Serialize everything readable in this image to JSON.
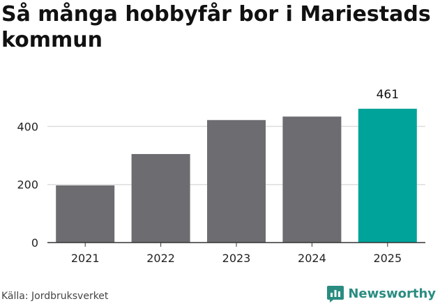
{
  "title": "Så många hobbyfår bor i Mariestads kommun",
  "source": "Källa: Jordbruksverket",
  "brand": {
    "name": "Newsworthy",
    "icon": "newsworthy-logo-icon"
  },
  "colors": {
    "bar": "#6d6c70",
    "highlight": "#00a39a",
    "grid": "#dddddd",
    "axis": "#333333",
    "brand": "#2a8c81"
  },
  "chart_data": {
    "type": "bar",
    "categories": [
      "2021",
      "2022",
      "2023",
      "2024",
      "2025"
    ],
    "values": [
      197,
      305,
      422,
      434,
      461
    ],
    "highlight_index": 4,
    "value_labels": [
      null,
      null,
      null,
      null,
      "461"
    ],
    "yticks": [
      0,
      200,
      400
    ],
    "ylim": [
      0,
      461
    ],
    "grid": true,
    "title": "Så många hobbyfår bor i Mariestads kommun",
    "xlabel": "",
    "ylabel": ""
  }
}
